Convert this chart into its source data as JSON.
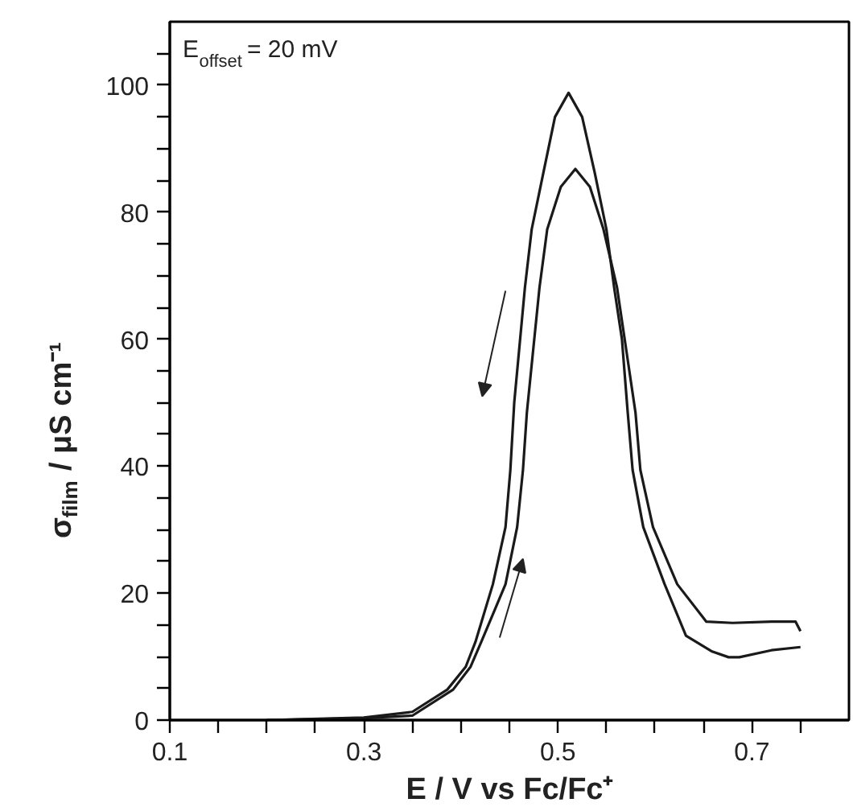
{
  "chart_data": {
    "type": "line",
    "xlabel": "E / V vs Fc/Fc⁺",
    "ylabel": "σ$_{film}$ / μS cm⁻¹",
    "annotations": [
      "E$_{offset}$ = 20 mV"
    ],
    "xlim": [
      0.1,
      0.8
    ],
    "ylim": [
      0,
      110
    ],
    "xticks": [
      0.1,
      {
        "value": 0.15,
        "label": null
      },
      {
        "value": 0.2,
        "label": null
      },
      {
        "value": 0.25,
        "label": null
      },
      0.3,
      {
        "value": 0.35,
        "label": null
      },
      {
        "value": 0.4,
        "label": null
      },
      {
        "value": 0.45,
        "label": null
      },
      0.5,
      {
        "value": 0.55,
        "label": null
      },
      {
        "value": 0.6,
        "label": null
      },
      {
        "value": 0.65,
        "label": null
      },
      0.7,
      {
        "value": 0.75,
        "label": null
      }
    ],
    "yticks": [
      0,
      {
        "value": 5,
        "label": null
      },
      {
        "value": 10,
        "label": null
      },
      {
        "value": 15,
        "label": null
      },
      20,
      {
        "value": 25,
        "label": null
      },
      {
        "value": 30,
        "label": null
      },
      {
        "value": 35,
        "label": null
      },
      40,
      {
        "value": 45,
        "label": null
      },
      {
        "value": 50,
        "label": null
      },
      {
        "value": 55,
        "label": null
      },
      60,
      {
        "value": 65,
        "label": null
      },
      {
        "value": 70,
        "label": null
      },
      {
        "value": 75,
        "label": null
      },
      80,
      {
        "value": 85,
        "label": null
      },
      {
        "value": 90,
        "label": null
      },
      {
        "value": 95,
        "label": null
      },
      100,
      {
        "value": 105,
        "label": null
      }
    ],
    "grid": false,
    "legend": false,
    "marker": "none",
    "line_style": "solid",
    "series": [
      {
        "color": "#1a1a1a",
        "x": [
          0.2,
          0.3,
          0.35,
          0.392,
          0.41,
          0.421,
          0.446,
          0.458,
          0.464,
          0.468,
          0.481,
          0.489,
          0.503,
          0.518,
          0.533,
          0.547,
          0.561,
          0.58,
          0.585,
          0.598,
          0.623,
          0.653,
          0.68,
          0.72,
          0.745,
          0.75
        ],
        "values": [
          0,
          0.3,
          0.7,
          4.8,
          8.4,
          12.3,
          21.4,
          30.4,
          39.4,
          48.4,
          68.1,
          77.3,
          84,
          86.8,
          84,
          77.3,
          68.1,
          48.4,
          39.4,
          30.4,
          21.4,
          15.5,
          15.3,
          15.5,
          15.5,
          14
        ]
      },
      {
        "color": "#1a1a1a",
        "x": [
          0.75,
          0.72,
          0.687,
          0.676,
          0.659,
          0.632,
          0.61,
          0.588,
          0.577,
          0.572,
          0.566,
          0.558,
          0.55,
          0.538,
          0.525,
          0.511,
          0.497,
          0.485,
          0.473,
          0.466,
          0.455,
          0.451,
          0.446,
          0.433,
          0.415,
          0.405,
          0.386,
          0.35,
          0.3,
          0.2
        ],
        "values": [
          11.5,
          11,
          9.9,
          9.9,
          10.8,
          13.3,
          21.4,
          30.4,
          39.4,
          48.4,
          60,
          68.1,
          77.3,
          86.2,
          95,
          98.8,
          95,
          86.2,
          77.3,
          68.1,
          50,
          39.4,
          30.4,
          21.4,
          12.3,
          8.4,
          4.8,
          1.3,
          0.4,
          0
        ]
      }
    ]
  }
}
